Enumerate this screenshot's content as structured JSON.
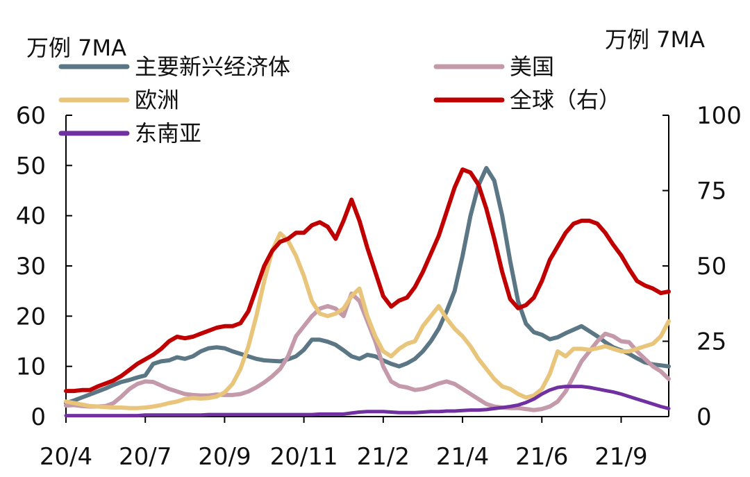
{
  "chart_data": {
    "type": "line",
    "left_unit": "万例 7MA",
    "right_unit": "万例 7MA",
    "x_tick_labels": [
      "20/4",
      "20/7",
      "20/9",
      "20/11",
      "21/2",
      "21/4",
      "21/6",
      "21/9"
    ],
    "x_tick_idx": [
      0,
      10,
      20,
      30,
      40,
      50,
      60,
      70
    ],
    "y_left": {
      "ticks": [
        "0",
        "10",
        "20",
        "30",
        "40",
        "50",
        "60"
      ],
      "lim": [
        0,
        60
      ]
    },
    "y_right": {
      "ticks": [
        "0",
        "25",
        "50",
        "75",
        "100"
      ],
      "lim": [
        0,
        100
      ]
    },
    "x_count": 77,
    "legend": [
      {
        "key": "em",
        "label": "主要新兴经济体"
      },
      {
        "key": "us",
        "label": "美国"
      },
      {
        "key": "eu",
        "label": "欧洲"
      },
      {
        "key": "global",
        "label": "全球（右）"
      },
      {
        "key": "sea",
        "label": "东南亚"
      }
    ],
    "colors": {
      "em": "#5b7684",
      "us": "#c49aaa",
      "eu": "#e8c57a",
      "global": "#c00000",
      "sea": "#7030a0"
    },
    "series": [
      {
        "key": "em",
        "axis": "left",
        "values": [
          2.7,
          3.2,
          3.8,
          4.4,
          5.0,
          5.6,
          6.3,
          6.9,
          7.3,
          7.8,
          8.2,
          10.5,
          11.0,
          11.2,
          11.8,
          11.5,
          12.0,
          13.0,
          13.6,
          13.8,
          13.6,
          13.0,
          12.5,
          12.0,
          11.5,
          11.2,
          11.1,
          11.0,
          11.4,
          12.0,
          13.3,
          15.3,
          15.3,
          14.9,
          14.3,
          13.2,
          12.0,
          11.5,
          12.3,
          12.0,
          11.2,
          10.5,
          10.0,
          10.6,
          11.5,
          13.0,
          15.0,
          17.5,
          21.0,
          25.0,
          32.0,
          40.0,
          46.0,
          49.5,
          47.0,
          40.0,
          31.0,
          23.0,
          18.5,
          16.8,
          16.3,
          15.4,
          15.8,
          16.6,
          17.3,
          18.0,
          17.0,
          16.0,
          14.8,
          13.8,
          13.2,
          12.5,
          11.6,
          10.8,
          10.4,
          10.2,
          10.0
        ]
      },
      {
        "key": "us",
        "axis": "left",
        "values": [
          2.2,
          2.3,
          2.1,
          2.0,
          2.0,
          2.1,
          2.7,
          4.0,
          5.5,
          6.5,
          7.0,
          6.9,
          6.2,
          5.5,
          5.0,
          4.5,
          4.3,
          4.2,
          4.2,
          4.4,
          4.3,
          4.3,
          4.5,
          5.0,
          5.8,
          6.8,
          8.0,
          9.5,
          12.0,
          16.0,
          18.0,
          20.0,
          21.5,
          22.0,
          21.5,
          20.0,
          24.5,
          23.0,
          19.0,
          15.0,
          10.0,
          7.0,
          6.1,
          5.8,
          5.3,
          5.5,
          6.0,
          6.6,
          7.0,
          6.5,
          5.5,
          4.5,
          3.5,
          2.5,
          2.0,
          1.8,
          1.7,
          1.7,
          1.5,
          1.3,
          1.5,
          2.0,
          3.0,
          5.0,
          8.0,
          11.0,
          13.0,
          15.0,
          16.5,
          16.0,
          15.0,
          14.8,
          13.0,
          11.5,
          10.0,
          9.0,
          7.5
        ]
      },
      {
        "key": "eu",
        "axis": "left",
        "values": [
          3.0,
          2.7,
          2.4,
          2.1,
          2.0,
          1.9,
          1.8,
          1.8,
          1.7,
          1.7,
          1.8,
          2.0,
          2.3,
          2.7,
          3.0,
          3.5,
          3.7,
          3.6,
          3.7,
          4.0,
          4.8,
          6.5,
          9.5,
          14.0,
          20.0,
          27.0,
          33.0,
          36.5,
          35.0,
          32.0,
          28.0,
          23.0,
          20.5,
          20.0,
          20.5,
          21.5,
          24.0,
          25.5,
          20.0,
          16.0,
          13.0,
          12.0,
          13.5,
          14.5,
          15.0,
          18.0,
          20.0,
          22.0,
          19.5,
          17.5,
          16.0,
          14.0,
          11.5,
          9.5,
          7.5,
          6.0,
          5.5,
          4.5,
          3.8,
          4.2,
          5.5,
          8.5,
          13.0,
          12.0,
          13.5,
          13.5,
          13.3,
          13.6,
          14.0,
          13.5,
          13.0,
          13.0,
          13.5,
          14.0,
          14.5,
          16.0,
          19.0
        ]
      },
      {
        "key": "global",
        "axis": "right",
        "values": [
          8.5,
          8.5,
          8.8,
          8.8,
          10.0,
          11.0,
          12.0,
          13.5,
          15.5,
          17.5,
          19.0,
          20.5,
          22.5,
          25.0,
          26.5,
          26.0,
          26.5,
          27.5,
          28.5,
          29.5,
          30.0,
          30.0,
          31.0,
          35.0,
          42.5,
          50.0,
          55.0,
          58.0,
          59.0,
          61.0,
          61.0,
          63.5,
          64.5,
          63.0,
          59.0,
          65.0,
          72.0,
          65.0,
          56.0,
          48.0,
          40.0,
          36.5,
          38.5,
          39.5,
          43.0,
          48.0,
          54.0,
          60.0,
          68.0,
          76.0,
          82.0,
          81.0,
          77.0,
          69.0,
          59.0,
          48.0,
          39.0,
          36.0,
          37.0,
          39.5,
          45.0,
          52.0,
          56.5,
          61.0,
          64.0,
          65.0,
          65.0,
          64.0,
          61.0,
          57.0,
          53.5,
          49.0,
          45.0,
          43.5,
          42.5,
          41.0,
          41.5
        ]
      },
      {
        "key": "sea",
        "axis": "left",
        "values": [
          0.2,
          0.2,
          0.2,
          0.2,
          0.2,
          0.2,
          0.2,
          0.2,
          0.2,
          0.2,
          0.3,
          0.3,
          0.3,
          0.3,
          0.3,
          0.3,
          0.3,
          0.3,
          0.4,
          0.4,
          0.4,
          0.4,
          0.4,
          0.4,
          0.4,
          0.4,
          0.4,
          0.4,
          0.4,
          0.4,
          0.4,
          0.4,
          0.5,
          0.5,
          0.5,
          0.5,
          0.7,
          0.9,
          1.0,
          1.0,
          1.0,
          0.9,
          0.8,
          0.8,
          0.8,
          0.9,
          1.0,
          1.0,
          1.1,
          1.1,
          1.2,
          1.3,
          1.3,
          1.4,
          1.6,
          1.8,
          2.0,
          2.3,
          2.8,
          3.5,
          4.5,
          5.3,
          5.8,
          6.0,
          6.0,
          6.0,
          5.8,
          5.5,
          5.2,
          4.9,
          4.5,
          4.0,
          3.5,
          3.0,
          2.5,
          2.0,
          1.6
        ]
      }
    ]
  }
}
